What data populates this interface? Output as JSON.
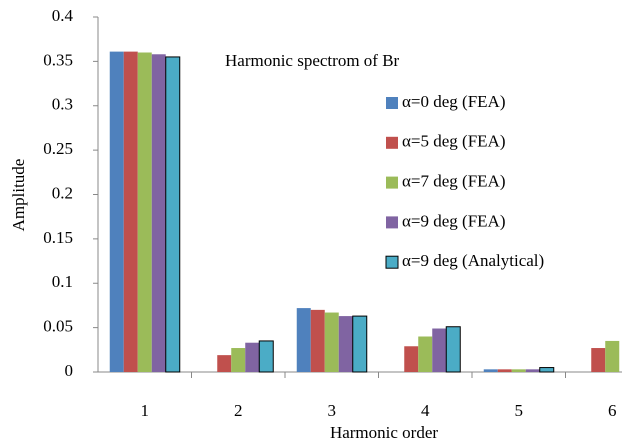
{
  "chart_data": {
    "type": "bar",
    "title": "Harmonic spectrom of Br",
    "xlabel": "Harmonic order",
    "ylabel": "Amplitude",
    "categories": [
      "1",
      "2",
      "3",
      "4",
      "5",
      "6"
    ],
    "series": [
      {
        "name": "α=0 deg (FEA)",
        "color": "#4f81bd",
        "values": [
          0.361,
          0,
          0.072,
          0,
          0.003,
          0
        ]
      },
      {
        "name": "α=5 deg (FEA)",
        "color": "#c0504d",
        "values": [
          0.361,
          0.019,
          0.07,
          0.029,
          0.003,
          0.027
        ]
      },
      {
        "name": "α=7 deg (FEA)",
        "color": "#9bbb59",
        "values": [
          0.36,
          0.027,
          0.067,
          0.04,
          0.003,
          0.035
        ]
      },
      {
        "name": "α=9 deg (FEA)",
        "color": "#8064a2",
        "values": [
          0.358,
          0.033,
          0.063,
          0.049,
          0.003,
          null
        ]
      },
      {
        "name": "α=9 deg (Analytical)",
        "color": "#4bacc6",
        "values": [
          0.355,
          0.035,
          0.063,
          0.051,
          0.005,
          null
        ]
      }
    ],
    "ylim": [
      0,
      0.4
    ],
    "yticks": [
      0,
      0.05,
      0.1,
      0.15,
      0.2,
      0.25,
      0.3,
      0.35,
      0.4
    ],
    "legend": "upper right",
    "grid": false
  }
}
